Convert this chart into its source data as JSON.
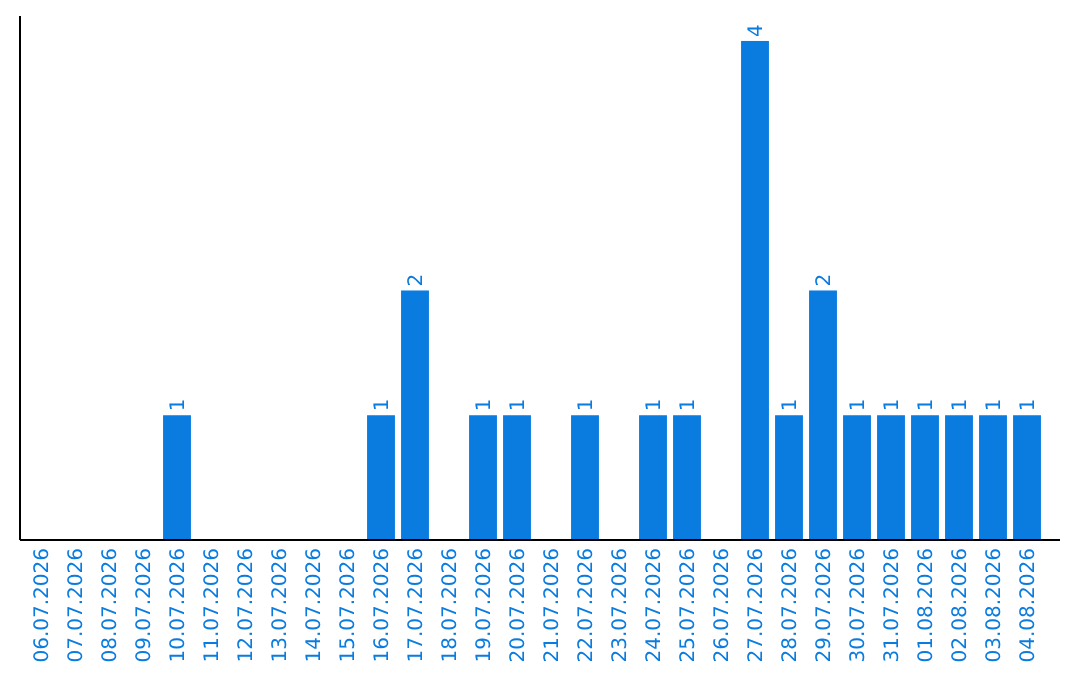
{
  "chart_data": {
    "type": "bar",
    "categories": [
      "06.07.2026",
      "07.07.2026",
      "08.07.2026",
      "09.07.2026",
      "10.07.2026",
      "11.07.2026",
      "12.07.2026",
      "13.07.2026",
      "14.07.2026",
      "15.07.2026",
      "16.07.2026",
      "17.07.2026",
      "18.07.2026",
      "19.07.2026",
      "20.07.2026",
      "21.07.2026",
      "22.07.2026",
      "23.07.2026",
      "24.07.2026",
      "25.07.2026",
      "26.07.2026",
      "27.07.2026",
      "28.07.2026",
      "29.07.2026",
      "30.07.2026",
      "31.07.2026",
      "01.08.2026",
      "02.08.2026",
      "03.08.2026",
      "04.08.2026"
    ],
    "values": [
      0,
      0,
      0,
      0,
      1,
      0,
      0,
      0,
      0,
      0,
      1,
      2,
      0,
      1,
      1,
      0,
      1,
      0,
      1,
      1,
      0,
      4,
      1,
      2,
      1,
      1,
      1,
      1,
      1,
      1
    ],
    "value_labels": [
      null,
      null,
      null,
      null,
      "1",
      null,
      null,
      null,
      null,
      null,
      "1",
      "2",
      null,
      "1",
      "1",
      null,
      "1",
      null,
      "1",
      "1",
      null,
      "4",
      "1",
      "2",
      "1",
      "1",
      "1",
      "1",
      "1",
      "1"
    ],
    "color": "#0a7ce0",
    "ylim": [
      0,
      4.2
    ],
    "tick_labels": "x"
  }
}
